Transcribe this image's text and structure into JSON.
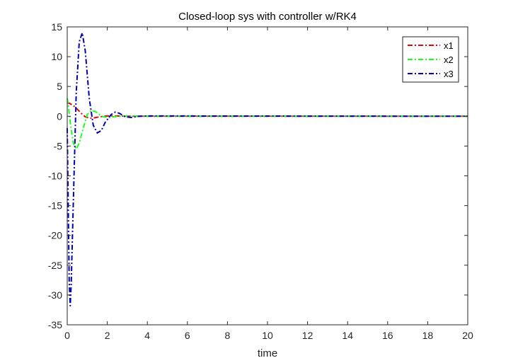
{
  "chart_data": {
    "type": "line",
    "title": "Closed-loop sys with controller w/RK4",
    "xlabel": "time",
    "ylabel": "",
    "xlim": [
      0,
      20
    ],
    "ylim": [
      -35,
      15
    ],
    "xticks": [
      0,
      2,
      4,
      6,
      8,
      10,
      12,
      14,
      16,
      18,
      20
    ],
    "yticks": [
      15,
      10,
      5,
      0,
      -5,
      -10,
      -15,
      -20,
      -25,
      -30,
      -35
    ],
    "grid": false,
    "legend_position": "top-right",
    "series": [
      {
        "name": "x1",
        "color": "#e8000b",
        "line_style": "dash-dot",
        "points": [
          [
            0,
            2.2
          ],
          [
            0.1,
            2.2
          ],
          [
            0.3,
            1.8
          ],
          [
            0.5,
            1.2
          ],
          [
            0.7,
            0.5
          ],
          [
            0.9,
            -0.1
          ],
          [
            1.1,
            -0.3
          ],
          [
            1.3,
            -0.3
          ],
          [
            1.6,
            -0.1
          ],
          [
            2.0,
            0.05
          ],
          [
            2.5,
            0.05
          ],
          [
            3.0,
            0
          ],
          [
            20,
            0
          ]
        ]
      },
      {
        "name": "x2",
        "color": "#1aff1a",
        "line_style": "dash-dot",
        "points": [
          [
            0,
            3.0
          ],
          [
            0.05,
            2.0
          ],
          [
            0.15,
            -1.0
          ],
          [
            0.3,
            -4.5
          ],
          [
            0.45,
            -5.5
          ],
          [
            0.6,
            -4.5
          ],
          [
            0.8,
            -2.0
          ],
          [
            1.0,
            0.3
          ],
          [
            1.2,
            1.0
          ],
          [
            1.4,
            0.8
          ],
          [
            1.6,
            0.3
          ],
          [
            1.8,
            -0.1
          ],
          [
            2.1,
            -0.2
          ],
          [
            2.5,
            0
          ],
          [
            3.0,
            0.05
          ],
          [
            3.5,
            0
          ],
          [
            20,
            0
          ]
        ]
      },
      {
        "name": "x3",
        "color": "#0000b3",
        "line_style": "dash-dot",
        "points": [
          [
            0,
            -2.0
          ],
          [
            0.05,
            -15
          ],
          [
            0.1,
            -28
          ],
          [
            0.15,
            -31.8
          ],
          [
            0.2,
            -28
          ],
          [
            0.3,
            -15
          ],
          [
            0.45,
            4
          ],
          [
            0.6,
            12.5
          ],
          [
            0.75,
            14
          ],
          [
            0.9,
            11
          ],
          [
            1.1,
            3
          ],
          [
            1.3,
            -1.5
          ],
          [
            1.5,
            -2.8
          ],
          [
            1.7,
            -2.4
          ],
          [
            1.9,
            -1.0
          ],
          [
            2.2,
            0.3
          ],
          [
            2.4,
            0.7
          ],
          [
            2.6,
            0.5
          ],
          [
            2.9,
            -0.1
          ],
          [
            3.2,
            -0.2
          ],
          [
            3.6,
            0
          ],
          [
            4.0,
            0.05
          ],
          [
            20,
            0
          ]
        ]
      }
    ]
  }
}
